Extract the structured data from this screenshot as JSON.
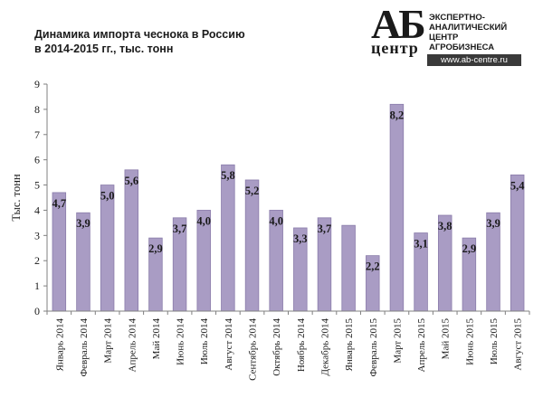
{
  "title": {
    "line1": "Динамика импорта чеснока в Россию",
    "line2": "в 2014-2015 гг., тыс. тонн"
  },
  "logo": {
    "mark": "АБ",
    "word": "центр",
    "line1": "ЭКСПЕРТНО-",
    "line2": "АНАЛИТИЧЕСКИЙ",
    "line3": "ЦЕНТР",
    "line4": "АГРОБИЗНЕСА",
    "url": "www.ab-centre.ru"
  },
  "colors": {
    "bar_fill": "#a99cc4",
    "bar_stroke": "#8a7caa",
    "axis": "#808080",
    "text": "#1a1a1a"
  },
  "chart_data": {
    "type": "bar",
    "title": "Динамика импорта чеснока в Россию в 2014-2015 гг., тыс. тонн",
    "ylabel": "Тыс. тонн",
    "xlabel": "",
    "ylim": [
      0,
      9
    ],
    "yticks": [
      "0",
      "1",
      "2",
      "3",
      "4",
      "5",
      "6",
      "7",
      "8",
      "9"
    ],
    "grid": false,
    "legend": "none",
    "categories": [
      "Январь 2014",
      "Февраль 2014",
      "Март 2014",
      "Апрель 2014",
      "Май 2014",
      "Июнь 2014",
      "Июль 2014",
      "Август 2014",
      "Сентябрь 2014",
      "Октябрь 2014",
      "Ноябрь 2014",
      "Декабрь 2014",
      "Январь 2015",
      "Февраль 2015",
      "Март 2015",
      "Апрель 2015",
      "Май 2015",
      "Июнь 2015",
      "Июль 2015",
      "Август 2015"
    ],
    "values": [
      4.7,
      3.9,
      5.0,
      5.6,
      2.9,
      3.7,
      4.0,
      5.8,
      5.2,
      4.0,
      3.3,
      3.7,
      3.4,
      2.2,
      8.2,
      3.1,
      3.8,
      2.9,
      3.9,
      5.4
    ],
    "data_labels": [
      "4,7",
      "3,9",
      "5,0",
      "5,6",
      "2,9",
      "3,7",
      "4,0",
      "5,8",
      "5,2",
      "4,0",
      "3,3",
      "3,7",
      "",
      "2,2",
      "8,2",
      "3,1",
      "3,8",
      "2,9",
      "3,9",
      "5,4"
    ]
  }
}
